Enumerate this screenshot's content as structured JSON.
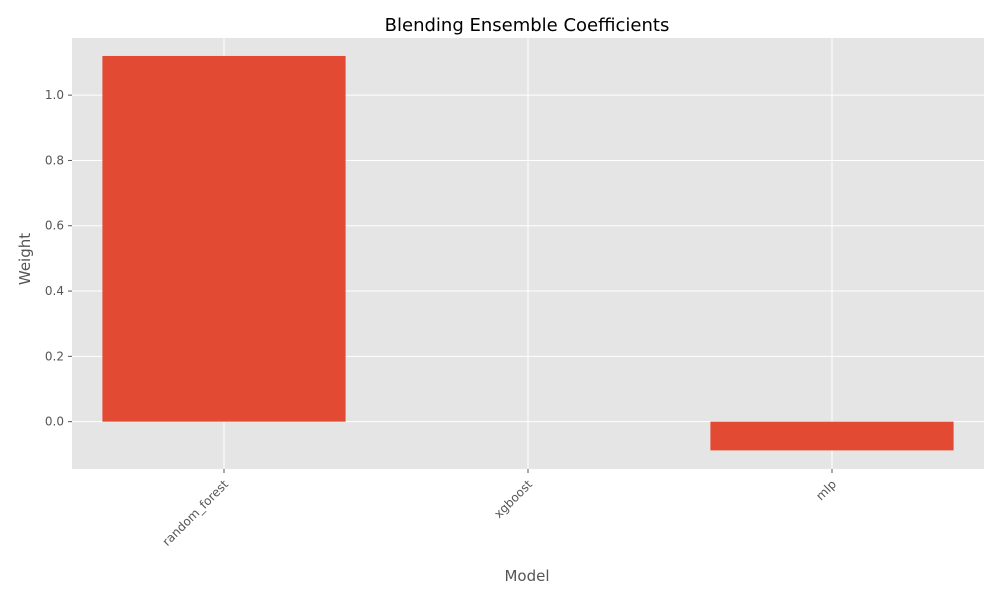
{
  "chart_data": {
    "type": "bar",
    "title": "Blending Ensemble Coefficients",
    "xlabel": "Model",
    "ylabel": "Weight",
    "categories": [
      "random_forest",
      "xgboost",
      "mlp"
    ],
    "values": [
      1.12,
      0.0,
      -0.088
    ],
    "ylim": [
      -0.145,
      1.175
    ],
    "yticks": [
      0.0,
      0.2,
      0.4,
      0.6,
      0.8,
      1.0
    ],
    "ytick_labels": [
      "0.0",
      "0.2",
      "0.4",
      "0.6",
      "0.8",
      "1.0"
    ],
    "grid": true,
    "bar_color": "#E24A33",
    "plot_background": "#E5E5E5",
    "grid_color": "#FFFFFF"
  }
}
